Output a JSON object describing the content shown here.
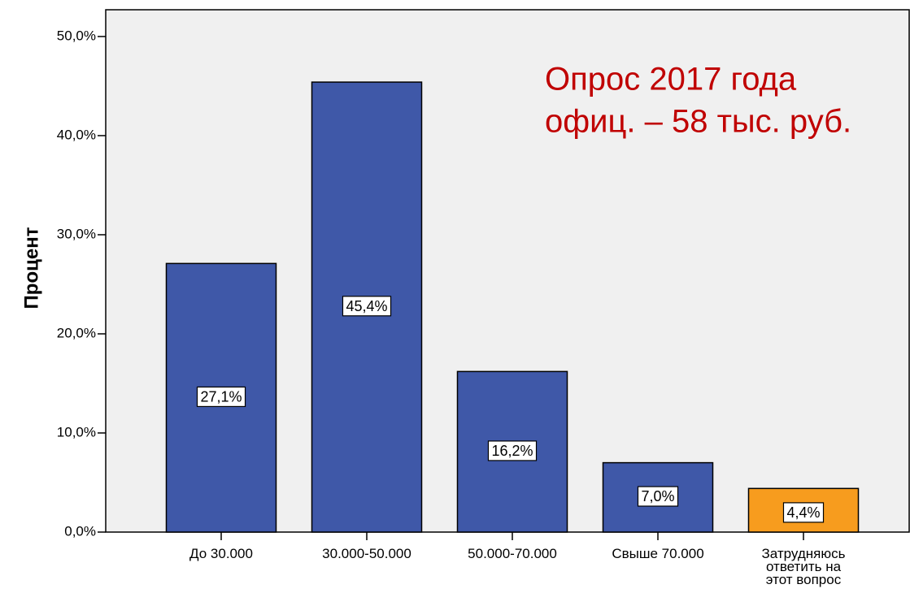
{
  "chart_data": {
    "type": "bar",
    "y_label": "Процент",
    "annotation": [
      "Опрос 2017 года",
      "офиц. – 58 тыс. руб."
    ],
    "categories": [
      "До 30.000",
      "30.000-50.000",
      "50.000-70.000",
      "Свыше 70.000",
      "Затрудняюсь\nответить на\nэтот вопрос"
    ],
    "values": [
      27.1,
      45.4,
      16.2,
      7.0,
      4.4
    ],
    "value_labels": [
      "27,1%",
      "45,4%",
      "16,2%",
      "7,0%",
      "4,4%"
    ],
    "colors": [
      "#3f58a8",
      "#3f58a8",
      "#3f58a8",
      "#3f58a8",
      "#f79c1e"
    ],
    "ylim": [
      0,
      52.7
    ],
    "yticks": [
      {
        "value": 0,
        "label": "0,0%"
      },
      {
        "value": 10,
        "label": "10,0%"
      },
      {
        "value": 20,
        "label": "20,0%"
      },
      {
        "value": 30,
        "label": "30,0%"
      },
      {
        "value": 40,
        "label": "40,0%"
      },
      {
        "value": 50,
        "label": "50,0%"
      }
    ]
  }
}
